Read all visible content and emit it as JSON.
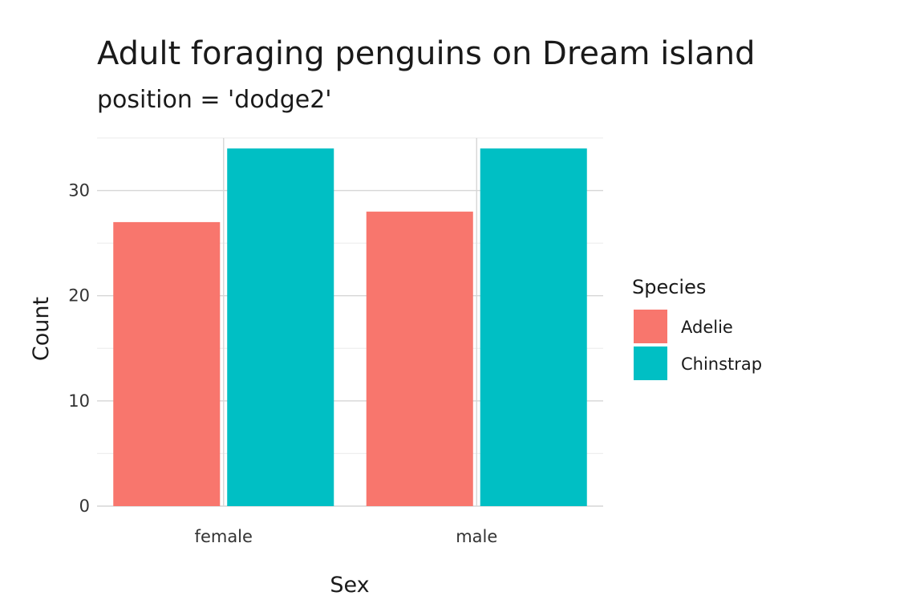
{
  "chart_data": {
    "type": "bar",
    "title": "Adult foraging penguins on Dream island",
    "subtitle": "position = 'dodge2'",
    "xlabel": "Sex",
    "ylabel": "Count",
    "categories": [
      "female",
      "male"
    ],
    "series": [
      {
        "name": "Adelie",
        "values": [
          27,
          28
        ],
        "color": "#F8766D"
      },
      {
        "name": "Chinstrap",
        "values": [
          34,
          34
        ],
        "color": "#00BFC4"
      }
    ],
    "ylim": [
      0,
      35
    ],
    "yticks": [
      0,
      10,
      20,
      30
    ],
    "grid": true,
    "legend": {
      "title": "Species",
      "position": "right"
    }
  }
}
